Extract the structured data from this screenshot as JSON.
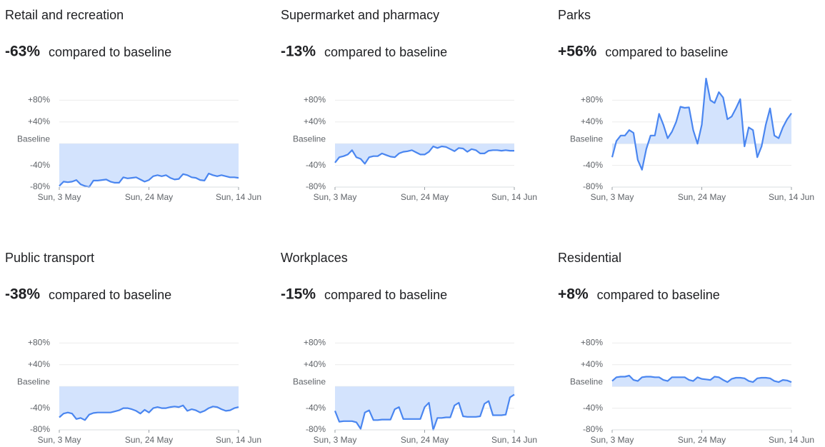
{
  "chart_data": [
    {
      "type": "line",
      "title": "Retail and recreation",
      "headline": "-63%",
      "caption": "compared to baseline",
      "categories": [
        "Sun, 3 May",
        null,
        null,
        null,
        null,
        null,
        null,
        null,
        null,
        null,
        null,
        null,
        null,
        null,
        null,
        null,
        null,
        null,
        null,
        null,
        null,
        "Sun, 24 May",
        null,
        null,
        null,
        null,
        null,
        null,
        null,
        null,
        null,
        null,
        null,
        null,
        null,
        null,
        null,
        null,
        null,
        null,
        null,
        null,
        "Sun, 14 Jun"
      ],
      "series": [
        {
          "color": "#4a86f0",
          "values": [
            -78,
            -70,
            -71,
            -70,
            -67,
            -75,
            -78,
            -80,
            -68,
            -68,
            -67,
            -66,
            -70,
            -72,
            -72,
            -62,
            -64,
            -63,
            -62,
            -66,
            -70,
            -67,
            -60,
            -58,
            -60,
            -58,
            -63,
            -66,
            -65,
            -56,
            -58,
            -62,
            -63,
            -67,
            -68,
            -55,
            -58,
            -60,
            -58,
            -60,
            -62,
            -62,
            -63
          ]
        }
      ],
      "fill_color": "#d3e3fd",
      "ylim": [
        -80,
        120
      ],
      "yticks": [
        {
          "value": 80,
          "label": "+80%"
        },
        {
          "value": 40,
          "label": "+40%"
        },
        {
          "value": 0,
          "label": "Baseline"
        },
        {
          "value": -40,
          "label": "-40%"
        },
        {
          "value": -80,
          "label": "-80%"
        }
      ]
    },
    {
      "type": "line",
      "title": "Supermarket and pharmacy",
      "headline": "-13%",
      "caption": "compared to baseline",
      "categories": [
        "Sun, 3 May",
        null,
        null,
        null,
        null,
        null,
        null,
        null,
        null,
        null,
        null,
        null,
        null,
        null,
        null,
        null,
        null,
        null,
        null,
        null,
        null,
        "Sun, 24 May",
        null,
        null,
        null,
        null,
        null,
        null,
        null,
        null,
        null,
        null,
        null,
        null,
        null,
        null,
        null,
        null,
        null,
        null,
        null,
        null,
        "Sun, 14 Jun"
      ],
      "series": [
        {
          "color": "#4a86f0",
          "values": [
            -35,
            -25,
            -23,
            -20,
            -12,
            -25,
            -28,
            -37,
            -25,
            -23,
            -23,
            -18,
            -21,
            -24,
            -25,
            -18,
            -15,
            -14,
            -12,
            -16,
            -20,
            -20,
            -15,
            -5,
            -8,
            -5,
            -6,
            -10,
            -14,
            -8,
            -9,
            -15,
            -10,
            -12,
            -18,
            -18,
            -13,
            -12,
            -12,
            -13,
            -12,
            -13,
            -13
          ]
        }
      ],
      "fill_color": "#d3e3fd",
      "ylim": [
        -80,
        120
      ],
      "yticks": [
        {
          "value": 80,
          "label": "+80%"
        },
        {
          "value": 40,
          "label": "+40%"
        },
        {
          "value": 0,
          "label": "Baseline"
        },
        {
          "value": -40,
          "label": "-40%"
        },
        {
          "value": -80,
          "label": "-80%"
        }
      ]
    },
    {
      "type": "line",
      "title": "Parks",
      "headline": "+56%",
      "caption": "compared to baseline",
      "categories": [
        "Sun, 3 May",
        null,
        null,
        null,
        null,
        null,
        null,
        null,
        null,
        null,
        null,
        null,
        null,
        null,
        null,
        null,
        null,
        null,
        null,
        null,
        null,
        "Sun, 24 May",
        null,
        null,
        null,
        null,
        null,
        null,
        null,
        null,
        null,
        null,
        null,
        null,
        null,
        null,
        null,
        null,
        null,
        null,
        null,
        null,
        "Sun, 14 Jun"
      ],
      "series": [
        {
          "color": "#4a86f0",
          "values": [
            -25,
            5,
            15,
            15,
            25,
            20,
            -30,
            -48,
            -10,
            15,
            15,
            55,
            35,
            10,
            22,
            40,
            68,
            66,
            67,
            25,
            0,
            35,
            120,
            80,
            75,
            95,
            85,
            45,
            50,
            65,
            82,
            -5,
            30,
            25,
            -25,
            -5,
            35,
            65,
            15,
            10,
            30,
            45,
            56
          ]
        }
      ],
      "fill_color": "#d3e3fd",
      "ylim": [
        -80,
        120
      ],
      "yticks": [
        {
          "value": 80,
          "label": "+80%"
        },
        {
          "value": 40,
          "label": "+40%"
        },
        {
          "value": 0,
          "label": "Baseline"
        },
        {
          "value": -40,
          "label": "-40%"
        },
        {
          "value": -80,
          "label": "-80%"
        }
      ]
    },
    {
      "type": "line",
      "title": "Public transport",
      "headline": "-38%",
      "caption": "compared to baseline",
      "categories": [
        "Sun, 3 May",
        null,
        null,
        null,
        null,
        null,
        null,
        null,
        null,
        null,
        null,
        null,
        null,
        null,
        null,
        null,
        null,
        null,
        null,
        null,
        null,
        "Sun, 24 May",
        null,
        null,
        null,
        null,
        null,
        null,
        null,
        null,
        null,
        null,
        null,
        null,
        null,
        null,
        null,
        null,
        null,
        null,
        null,
        null,
        "Sun, 14 Jun"
      ],
      "series": [
        {
          "color": "#4a86f0",
          "values": [
            -57,
            -50,
            -48,
            -50,
            -60,
            -58,
            -62,
            -52,
            -49,
            -48,
            -48,
            -48,
            -48,
            -46,
            -44,
            -40,
            -40,
            -42,
            -45,
            -50,
            -43,
            -48,
            -40,
            -38,
            -40,
            -40,
            -38,
            -37,
            -38,
            -35,
            -45,
            -42,
            -44,
            -48,
            -45,
            -40,
            -37,
            -38,
            -42,
            -45,
            -44,
            -40,
            -38
          ]
        }
      ],
      "fill_color": "#d3e3fd",
      "ylim": [
        -80,
        120
      ],
      "yticks": [
        {
          "value": 80,
          "label": "+80%"
        },
        {
          "value": 40,
          "label": "+40%"
        },
        {
          "value": 0,
          "label": "Baseline"
        },
        {
          "value": -40,
          "label": "-40%"
        },
        {
          "value": -80,
          "label": "-80%"
        }
      ]
    },
    {
      "type": "line",
      "title": "Workplaces",
      "headline": "-15%",
      "caption": "compared to baseline",
      "categories": [
        "Sun, 3 May",
        null,
        null,
        null,
        null,
        null,
        null,
        null,
        null,
        null,
        null,
        null,
        null,
        null,
        null,
        null,
        null,
        null,
        null,
        null,
        null,
        "Sun, 24 May",
        null,
        null,
        null,
        null,
        null,
        null,
        null,
        null,
        null,
        null,
        null,
        null,
        null,
        null,
        null,
        null,
        null,
        null,
        null,
        null,
        "Sun, 14 Jun"
      ],
      "series": [
        {
          "color": "#4a86f0",
          "values": [
            -45,
            -65,
            -64,
            -64,
            -64,
            -66,
            -78,
            -48,
            -44,
            -62,
            -62,
            -61,
            -61,
            -61,
            -42,
            -38,
            -60,
            -60,
            -60,
            -60,
            -60,
            -38,
            -30,
            -80,
            -58,
            -58,
            -57,
            -57,
            -35,
            -30,
            -55,
            -56,
            -56,
            -56,
            -55,
            -32,
            -27,
            -53,
            -53,
            -53,
            -52,
            -20,
            -15
          ]
        }
      ],
      "fill_color": "#d3e3fd",
      "ylim": [
        -80,
        120
      ],
      "yticks": [
        {
          "value": 80,
          "label": "+80%"
        },
        {
          "value": 40,
          "label": "+40%"
        },
        {
          "value": 0,
          "label": "Baseline"
        },
        {
          "value": -40,
          "label": "-40%"
        },
        {
          "value": -80,
          "label": "-80%"
        }
      ]
    },
    {
      "type": "line",
      "title": "Residential",
      "headline": "+8%",
      "caption": "compared to baseline",
      "categories": [
        "Sun, 3 May",
        null,
        null,
        null,
        null,
        null,
        null,
        null,
        null,
        null,
        null,
        null,
        null,
        null,
        null,
        null,
        null,
        null,
        null,
        null,
        null,
        "Sun, 24 May",
        null,
        null,
        null,
        null,
        null,
        null,
        null,
        null,
        null,
        null,
        null,
        null,
        null,
        null,
        null,
        null,
        null,
        null,
        null,
        null,
        "Sun, 14 Jun"
      ],
      "series": [
        {
          "color": "#4a86f0",
          "values": [
            10,
            17,
            18,
            18,
            20,
            12,
            10,
            17,
            18,
            18,
            17,
            17,
            12,
            10,
            17,
            17,
            17,
            17,
            12,
            10,
            17,
            14,
            13,
            12,
            18,
            17,
            12,
            8,
            14,
            16,
            16,
            15,
            10,
            8,
            15,
            16,
            16,
            15,
            10,
            8,
            12,
            11,
            8
          ]
        }
      ],
      "fill_color": "#d3e3fd",
      "ylim": [
        -80,
        120
      ],
      "yticks": [
        {
          "value": 80,
          "label": "+80%"
        },
        {
          "value": 40,
          "label": "+40%"
        },
        {
          "value": 0,
          "label": "Baseline"
        },
        {
          "value": -40,
          "label": "-40%"
        },
        {
          "value": -80,
          "label": "-80%"
        }
      ]
    }
  ]
}
